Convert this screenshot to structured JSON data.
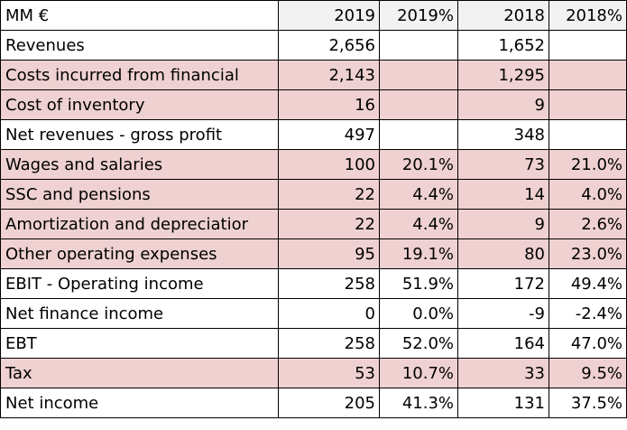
{
  "colors": {
    "shaded_row": "#efd1d1",
    "header_fill": "#f2f2f2",
    "border": "#000000"
  },
  "header": {
    "label": "MM €",
    "col_2019": "2019",
    "col_2019_pct": "2019%",
    "col_2018": "2018",
    "col_2018_pct": "2018%"
  },
  "rows": [
    {
      "label": "Revenues",
      "v2019": "2,656",
      "p2019": "",
      "v2018": "1,652",
      "p2018": "",
      "shaded": false
    },
    {
      "label": "Costs incurred from financial",
      "v2019": "2,143",
      "p2019": "",
      "v2018": "1,295",
      "p2018": "",
      "shaded": true
    },
    {
      "label": "Cost of inventory",
      "v2019": "16",
      "p2019": "",
      "v2018": "9",
      "p2018": "",
      "shaded": true
    },
    {
      "label": "Net revenues - gross profit",
      "v2019": "497",
      "p2019": "",
      "v2018": "348",
      "p2018": "",
      "shaded": false
    },
    {
      "label": "Wages and salaries",
      "v2019": "100",
      "p2019": "20.1%",
      "v2018": "73",
      "p2018": "21.0%",
      "shaded": true
    },
    {
      "label": "SSC and pensions",
      "v2019": "22",
      "p2019": "4.4%",
      "v2018": "14",
      "p2018": "4.0%",
      "shaded": true
    },
    {
      "label": "Amortization and depreciatior",
      "v2019": "22",
      "p2019": "4.4%",
      "v2018": "9",
      "p2018": "2.6%",
      "shaded": true
    },
    {
      "label": "Other operating expenses",
      "v2019": "95",
      "p2019": "19.1%",
      "v2018": "80",
      "p2018": "23.0%",
      "shaded": true
    },
    {
      "label": "EBIT - Operating income",
      "v2019": "258",
      "p2019": "51.9%",
      "v2018": "172",
      "p2018": "49.4%",
      "shaded": false
    },
    {
      "label": "Net finance income",
      "v2019": "0",
      "p2019": "0.0%",
      "v2018": "-9",
      "p2018": "-2.4%",
      "shaded": false
    },
    {
      "label": "EBT",
      "v2019": "258",
      "p2019": "52.0%",
      "v2018": "164",
      "p2018": "47.0%",
      "shaded": false
    },
    {
      "label": "Tax",
      "v2019": "53",
      "p2019": "10.7%",
      "v2018": "33",
      "p2018": "9.5%",
      "shaded": true
    },
    {
      "label": "Net income",
      "v2019": "205",
      "p2019": "41.3%",
      "v2018": "131",
      "p2018": "37.5%",
      "shaded": false
    }
  ]
}
